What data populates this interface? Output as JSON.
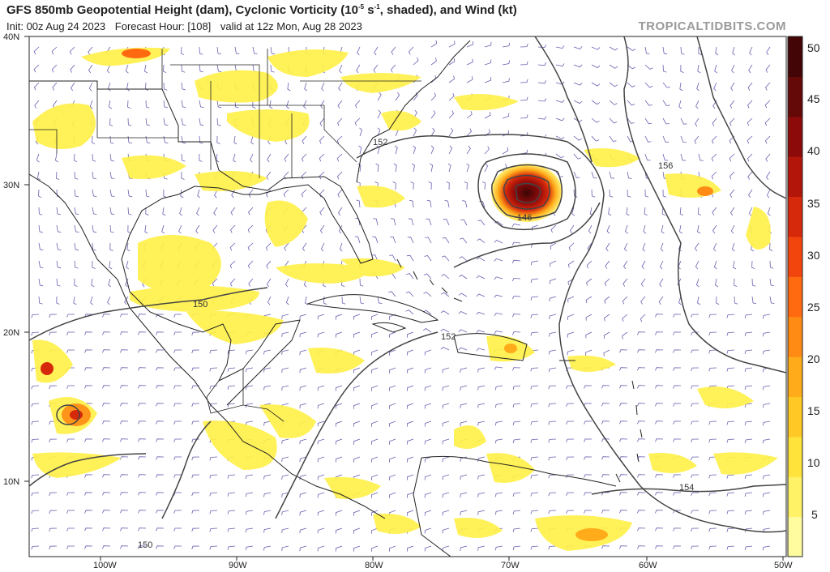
{
  "header": {
    "title_pre": "GFS 850mb Geopotential Height (dam), Cyclonic Vorticity (10",
    "title_exp": "-5",
    "title_unit": " s",
    "title_exp2": "-1",
    "title_post": ", shaded), and Wind (kt)",
    "init": "Init: 00z Aug 24 2023",
    "forecast_hour": "Forecast Hour: [108]",
    "valid": "valid at 12z Mon, Aug 28 2023",
    "brand": "TROPICALTIDBITS.COM"
  },
  "lat_labels": [
    "40N",
    "30N",
    "20N",
    "10N"
  ],
  "lon_labels": [
    "100W",
    "90W",
    "80W",
    "70W",
    "60W",
    "50W"
  ],
  "colorbar": {
    "labels": [
      "50",
      "45",
      "40",
      "35",
      "30",
      "25",
      "20",
      "15",
      "10",
      "5"
    ],
    "colors": [
      "#fffca0",
      "#fff266",
      "#ffe23a",
      "#ffc824",
      "#ffab1a",
      "#ff8a14",
      "#ff6a10",
      "#f2450d",
      "#d6280b",
      "#b3150a",
      "#8c0a0a",
      "#650808",
      "#430505"
    ]
  },
  "contour_labels": [
    "152",
    "146",
    "156",
    "150",
    "152",
    "154",
    "150"
  ],
  "map_colors": {
    "background": "#ffffff",
    "coast": "#222222",
    "contour": "#444444",
    "barb": "#6a5fb0"
  }
}
